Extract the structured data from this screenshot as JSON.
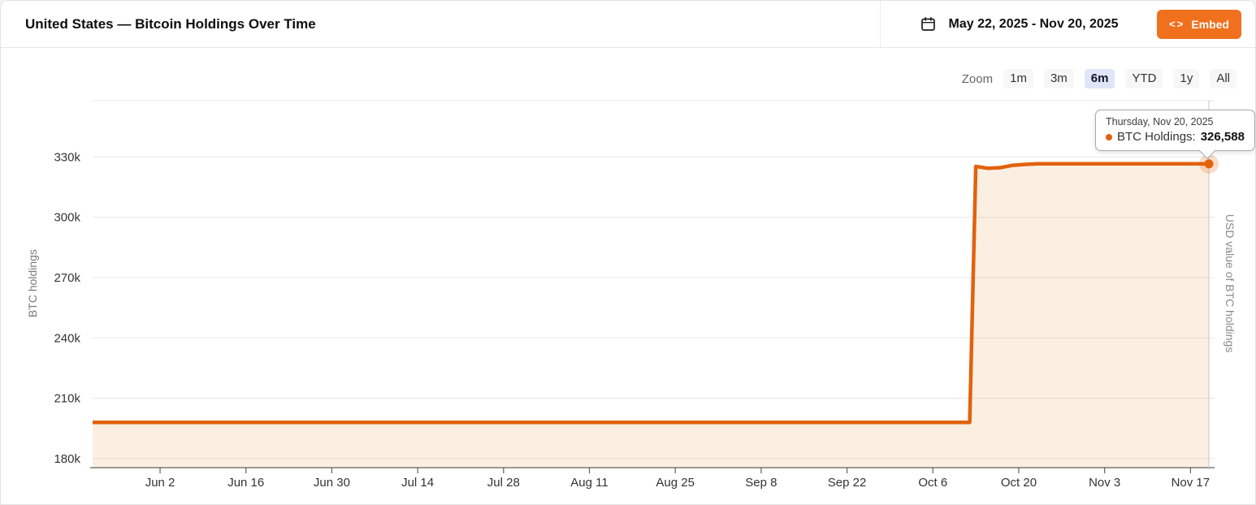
{
  "header": {
    "title": "United States — Bitcoin Holdings Over Time",
    "date_range": "May 22, 2025 - Nov 20, 2025",
    "embed_icon": "<>",
    "embed_label": "Embed"
  },
  "zoom_controls": {
    "label": "Zoom",
    "options": [
      {
        "label": "1m",
        "selected": false
      },
      {
        "label": "3m",
        "selected": false
      },
      {
        "label": "6m",
        "selected": true
      },
      {
        "label": "YTD",
        "selected": false
      },
      {
        "label": "1y",
        "selected": false
      },
      {
        "label": "All",
        "selected": false
      }
    ]
  },
  "tooltip": {
    "date": "Thursday, Nov 20, 2025",
    "series_label": "BTC Holdings:",
    "value": "326,588"
  },
  "chart_data": {
    "type": "area",
    "title": "United States — Bitcoin Holdings Over Time",
    "ylabel_left": "BTC holdings",
    "ylabel_right": "USD value of BTC holdings",
    "x_start": "2025-05-22",
    "x_end": "2025-11-20",
    "ylim": [
      175500,
      358000
    ],
    "grid": true,
    "legend_position": "none",
    "line_color": "#e2620e",
    "fill_color": "rgba(226,120,20,0.12)",
    "points": [
      {
        "date": "2025-05-22",
        "value": 198012
      },
      {
        "date": "2025-10-12",
        "value": 198012
      },
      {
        "date": "2025-10-13",
        "value": 325283
      },
      {
        "date": "2025-10-15",
        "value": 324350
      },
      {
        "date": "2025-10-17",
        "value": 324700
      },
      {
        "date": "2025-10-19",
        "value": 325850
      },
      {
        "date": "2025-10-21",
        "value": 326300
      },
      {
        "date": "2025-10-23",
        "value": 326588
      },
      {
        "date": "2025-11-20",
        "value": 326588
      }
    ],
    "marker": {
      "date": "2025-11-20",
      "value": 326588
    },
    "y_ticks": [
      {
        "value": 180000,
        "label": "180k"
      },
      {
        "value": 210000,
        "label": "210k"
      },
      {
        "value": 240000,
        "label": "240k"
      },
      {
        "value": 270000,
        "label": "270k"
      },
      {
        "value": 300000,
        "label": "300k"
      },
      {
        "value": 330000,
        "label": "330k"
      }
    ],
    "x_ticks": [
      {
        "date": "2025-06-02",
        "label": "Jun 2"
      },
      {
        "date": "2025-06-16",
        "label": "Jun 16"
      },
      {
        "date": "2025-06-30",
        "label": "Jun 30"
      },
      {
        "date": "2025-07-14",
        "label": "Jul 14"
      },
      {
        "date": "2025-07-28",
        "label": "Jul 28"
      },
      {
        "date": "2025-08-11",
        "label": "Aug 11"
      },
      {
        "date": "2025-08-25",
        "label": "Aug 25"
      },
      {
        "date": "2025-09-08",
        "label": "Sep 8"
      },
      {
        "date": "2025-09-22",
        "label": "Sep 22"
      },
      {
        "date": "2025-10-06",
        "label": "Oct 6"
      },
      {
        "date": "2025-10-20",
        "label": "Oct 20"
      },
      {
        "date": "2025-11-03",
        "label": "Nov 3"
      },
      {
        "date": "2025-11-17",
        "label": "Nov 17"
      }
    ]
  },
  "colors": {
    "accent_orange": "#e2620e",
    "embed_button_orange": "#f0701e",
    "selected_range_bg": "#e1e5f8",
    "area_fill": "rgba(226,120,20,0.12)",
    "gridline": "#e8e8e8"
  }
}
